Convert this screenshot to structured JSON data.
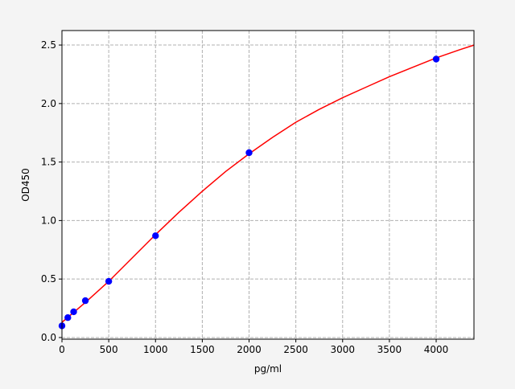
{
  "chart_data": {
    "type": "scatter",
    "title": "",
    "xlabel": "pg/ml",
    "ylabel": "OD450",
    "xlim": [
      0,
      4404
    ],
    "ylim": [
      -0.014,
      2.624
    ],
    "xticks": [
      0,
      500,
      1000,
      1500,
      2000,
      2500,
      3000,
      3500,
      4000
    ],
    "yticks": [
      "0.0",
      "0.5",
      "1.0",
      "1.5",
      "2.0",
      "2.5"
    ],
    "grid": true,
    "points": {
      "color": "#0000ff",
      "x": [
        0,
        62.5,
        125,
        250,
        500,
        1000,
        2000,
        4000
      ],
      "y": [
        0.1,
        0.17,
        0.22,
        0.315,
        0.48,
        0.87,
        1.58,
        2.38
      ]
    },
    "fit_curve": {
      "color": "#ff0000",
      "x": [
        0,
        250,
        500,
        750,
        1000,
        1250,
        1500,
        1750,
        2000,
        2250,
        2500,
        2750,
        3000,
        3250,
        3500,
        3750,
        4000,
        4250,
        4404
      ],
      "y": [
        0.13,
        0.3,
        0.48,
        0.68,
        0.88,
        1.07,
        1.25,
        1.42,
        1.57,
        1.71,
        1.84,
        1.95,
        2.05,
        2.14,
        2.23,
        2.31,
        2.39,
        2.46,
        2.5
      ]
    }
  }
}
